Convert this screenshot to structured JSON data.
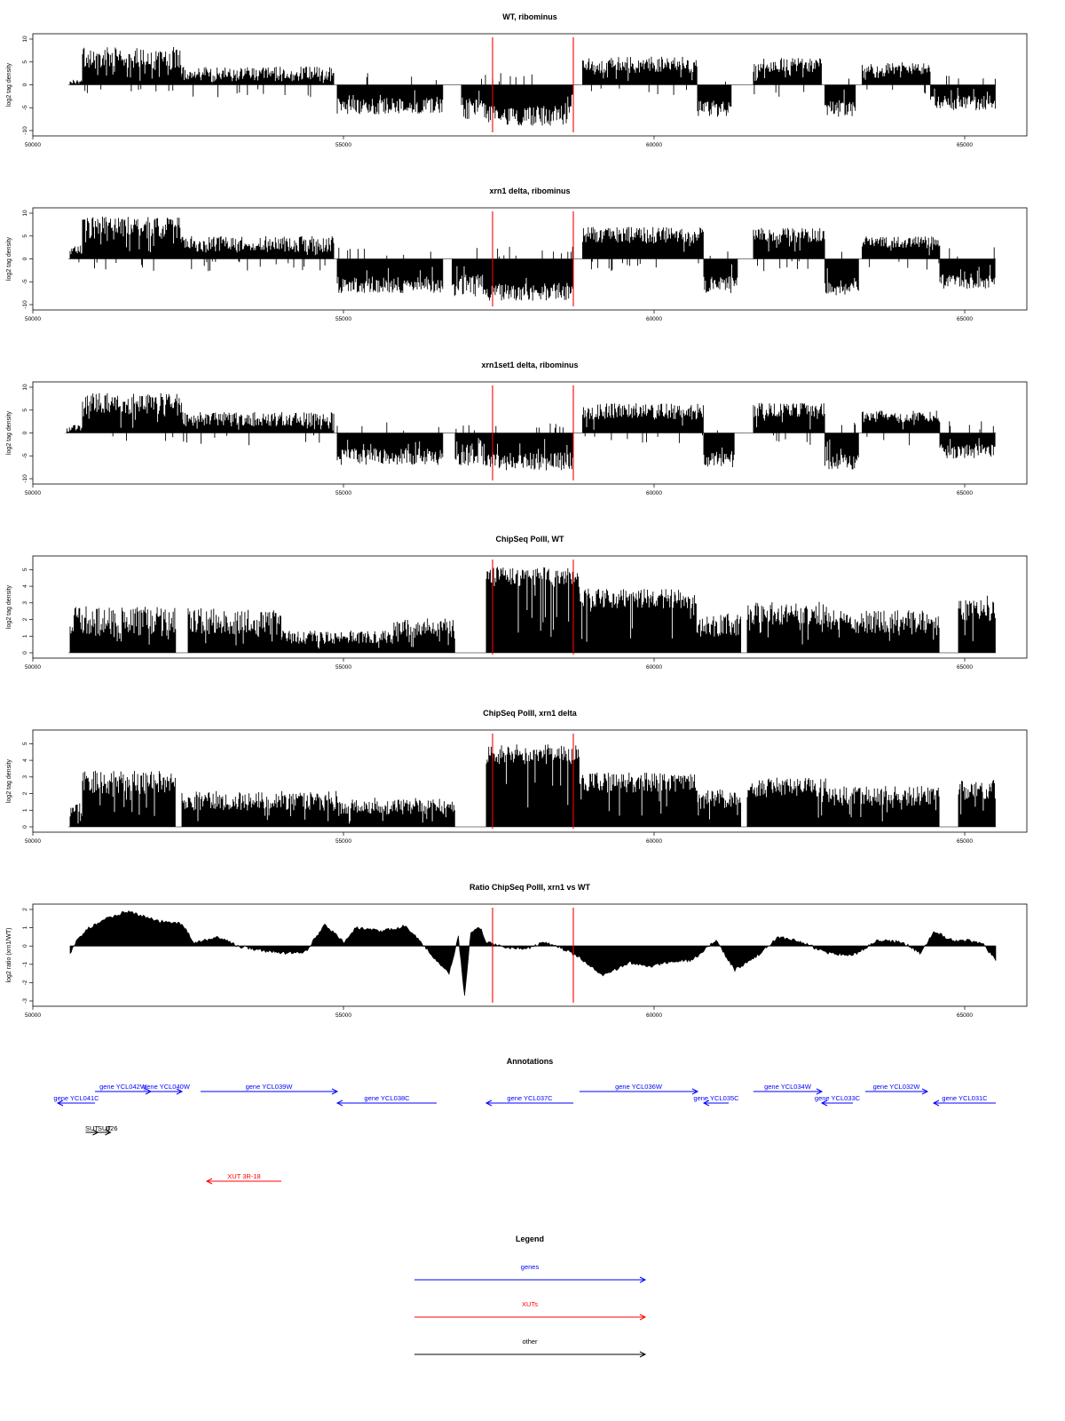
{
  "chart_data": [
    {
      "type": "bar",
      "title": "WT, ribominus",
      "ylabel": "log2 tag density",
      "ylim": [
        -10,
        10
      ],
      "yticks": [
        -10,
        -5,
        0,
        5,
        10
      ],
      "xlim": [
        50000,
        66000
      ],
      "xticks": [
        50000,
        55000,
        60000,
        65000
      ],
      "markers": [
        57400,
        58700
      ],
      "segments": [
        {
          "from": 50600,
          "to": 50800,
          "sign": 1,
          "level": 0.6,
          "jitter": 0.5
        },
        {
          "from": 50800,
          "to": 52400,
          "sign": 1,
          "level": 5.5,
          "jitter": 2.5
        },
        {
          "from": 52400,
          "to": 54850,
          "sign": 1,
          "level": 2.2,
          "jitter": 1.6
        },
        {
          "from": 54900,
          "to": 56600,
          "sign": -1,
          "level": 4.5,
          "jitter": 1.8
        },
        {
          "from": 56900,
          "to": 57300,
          "sign": -1,
          "level": 5,
          "jitter": 2.5
        },
        {
          "from": 57300,
          "to": 58700,
          "sign": -1,
          "level": 6.5,
          "jitter": 2.2
        },
        {
          "from": 58850,
          "to": 60700,
          "sign": 1,
          "level": 4.2,
          "jitter": 1.8
        },
        {
          "from": 60700,
          "to": 61250,
          "sign": -1,
          "level": 5,
          "jitter": 1.8
        },
        {
          "from": 61600,
          "to": 62700,
          "sign": 1,
          "level": 4.2,
          "jitter": 1.6
        },
        {
          "from": 62750,
          "to": 63250,
          "sign": -1,
          "level": 5,
          "jitter": 1.8
        },
        {
          "from": 63350,
          "to": 64450,
          "sign": 1,
          "level": 3.5,
          "jitter": 1.3
        },
        {
          "from": 64450,
          "to": 65500,
          "sign": -1,
          "level": 3.8,
          "jitter": 1.6
        }
      ]
    },
    {
      "type": "bar",
      "title": "xrn1 delta, ribominus",
      "ylabel": "log2 tag density",
      "ylim": [
        -10,
        10
      ],
      "yticks": [
        -10,
        -5,
        0,
        5,
        10
      ],
      "xlim": [
        50000,
        66000
      ],
      "xticks": [
        50000,
        55000,
        60000,
        65000
      ],
      "markers": [
        57400,
        58700
      ],
      "segments": [
        {
          "from": 50600,
          "to": 50800,
          "sign": 1,
          "level": 2,
          "jitter": 1.2
        },
        {
          "from": 50800,
          "to": 52400,
          "sign": 1,
          "level": 6.5,
          "jitter": 2.5
        },
        {
          "from": 52400,
          "to": 54850,
          "sign": 1,
          "level": 3,
          "jitter": 1.8
        },
        {
          "from": 54900,
          "to": 56600,
          "sign": -1,
          "level": 5.5,
          "jitter": 1.8
        },
        {
          "from": 56750,
          "to": 57300,
          "sign": -1,
          "level": 5.5,
          "jitter": 2.5
        },
        {
          "from": 57300,
          "to": 58700,
          "sign": -1,
          "level": 7,
          "jitter": 2
        },
        {
          "from": 58850,
          "to": 60800,
          "sign": 1,
          "level": 5,
          "jitter": 1.8
        },
        {
          "from": 60800,
          "to": 61350,
          "sign": -1,
          "level": 5.5,
          "jitter": 1.8
        },
        {
          "from": 61600,
          "to": 62750,
          "sign": 1,
          "level": 5,
          "jitter": 1.6
        },
        {
          "from": 62750,
          "to": 63300,
          "sign": -1,
          "level": 6,
          "jitter": 1.8
        },
        {
          "from": 63350,
          "to": 64600,
          "sign": 1,
          "level": 3.5,
          "jitter": 1.3
        },
        {
          "from": 64600,
          "to": 65500,
          "sign": -1,
          "level": 4.8,
          "jitter": 1.6
        }
      ]
    },
    {
      "type": "bar",
      "title": "xrn1set1 delta, ribominus",
      "ylabel": "log2 tag density",
      "ylim": [
        -10,
        10
      ],
      "yticks": [
        -10,
        -5,
        0,
        5,
        10
      ],
      "xlim": [
        50000,
        66000
      ],
      "xticks": [
        50000,
        55000,
        60000,
        65000
      ],
      "markers": [
        57400,
        58700
      ],
      "segments": [
        {
          "from": 50550,
          "to": 50800,
          "sign": 1,
          "level": 1,
          "jitter": 0.8
        },
        {
          "from": 50800,
          "to": 52400,
          "sign": 1,
          "level": 6,
          "jitter": 2.5
        },
        {
          "from": 52400,
          "to": 54850,
          "sign": 1,
          "level": 2.8,
          "jitter": 1.6
        },
        {
          "from": 54900,
          "to": 56600,
          "sign": -1,
          "level": 5,
          "jitter": 1.8
        },
        {
          "from": 56800,
          "to": 57300,
          "sign": -1,
          "level": 4.5,
          "jitter": 2.5
        },
        {
          "from": 57300,
          "to": 58700,
          "sign": -1,
          "level": 6,
          "jitter": 2
        },
        {
          "from": 58850,
          "to": 60800,
          "sign": 1,
          "level": 4.5,
          "jitter": 1.8
        },
        {
          "from": 60800,
          "to": 61300,
          "sign": -1,
          "level": 5.5,
          "jitter": 1.8
        },
        {
          "from": 61600,
          "to": 62750,
          "sign": 1,
          "level": 4.8,
          "jitter": 1.6
        },
        {
          "from": 62750,
          "to": 63300,
          "sign": -1,
          "level": 6,
          "jitter": 1.8
        },
        {
          "from": 63350,
          "to": 64600,
          "sign": 1,
          "level": 3.5,
          "jitter": 1.3
        },
        {
          "from": 64600,
          "to": 65500,
          "sign": -1,
          "level": 4,
          "jitter": 1.6
        }
      ]
    },
    {
      "type": "bar",
      "title": "ChipSeq PolII, WT",
      "ylabel": "log2 tag density",
      "ylim": [
        0,
        5.5
      ],
      "yticks": [
        0,
        1,
        2,
        3,
        4,
        5
      ],
      "xlim": [
        50000,
        66000
      ],
      "xticks": [
        50000,
        55000,
        60000,
        65000
      ],
      "markers": [
        57400,
        58700
      ],
      "segments": [
        {
          "from": 50600,
          "to": 52300,
          "sign": 1,
          "level": 1.8,
          "jitter": 0.9
        },
        {
          "from": 52500,
          "to": 54000,
          "sign": 1,
          "level": 1.8,
          "jitter": 0.8
        },
        {
          "from": 54000,
          "to": 55800,
          "sign": 1,
          "level": 0.9,
          "jitter": 0.4
        },
        {
          "from": 55800,
          "to": 56800,
          "sign": 1,
          "level": 1.4,
          "jitter": 0.6
        },
        {
          "from": 57300,
          "to": 58800,
          "sign": 1,
          "level": 4.5,
          "jitter": 0.6
        },
        {
          "from": 58800,
          "to": 60700,
          "sign": 1,
          "level": 3.2,
          "jitter": 0.6
        },
        {
          "from": 60700,
          "to": 61400,
          "sign": 1,
          "level": 1.6,
          "jitter": 0.7
        },
        {
          "from": 61500,
          "to": 62800,
          "sign": 1,
          "level": 2.3,
          "jitter": 0.7
        },
        {
          "from": 62800,
          "to": 64600,
          "sign": 1,
          "level": 1.8,
          "jitter": 0.7
        },
        {
          "from": 64900,
          "to": 65500,
          "sign": 1,
          "level": 2.6,
          "jitter": 0.8
        }
      ]
    },
    {
      "type": "bar",
      "title": "ChipSeq PolII, xrn1 delta",
      "ylabel": "log2 tag density",
      "ylim": [
        0,
        5.5
      ],
      "yticks": [
        0,
        1,
        2,
        3,
        4,
        5
      ],
      "xlim": [
        50000,
        66000
      ],
      "xticks": [
        50000,
        55000,
        60000,
        65000
      ],
      "markers": [
        57400,
        58700
      ],
      "segments": [
        {
          "from": 50600,
          "to": 50800,
          "sign": 1,
          "level": 1,
          "jitter": 0.5
        },
        {
          "from": 50800,
          "to": 52300,
          "sign": 1,
          "level": 2.6,
          "jitter": 0.7
        },
        {
          "from": 52400,
          "to": 54900,
          "sign": 1,
          "level": 1.5,
          "jitter": 0.6
        },
        {
          "from": 54900,
          "to": 56800,
          "sign": 1,
          "level": 1.2,
          "jitter": 0.5
        },
        {
          "from": 57300,
          "to": 58800,
          "sign": 1,
          "level": 4.3,
          "jitter": 0.6
        },
        {
          "from": 58800,
          "to": 60700,
          "sign": 1,
          "level": 2.6,
          "jitter": 0.6
        },
        {
          "from": 60700,
          "to": 61400,
          "sign": 1,
          "level": 1.6,
          "jitter": 0.6
        },
        {
          "from": 61500,
          "to": 62800,
          "sign": 1,
          "level": 2.3,
          "jitter": 0.6
        },
        {
          "from": 62800,
          "to": 64600,
          "sign": 1,
          "level": 1.8,
          "jitter": 0.6
        },
        {
          "from": 64900,
          "to": 65500,
          "sign": 1,
          "level": 2.2,
          "jitter": 0.6
        }
      ]
    },
    {
      "type": "area",
      "title": "Ratio ChipSeq PolII, xrn1 vs WT",
      "ylabel": "log2 ratio (xrn1/WT)",
      "ylim": [
        -3,
        2
      ],
      "yticks": [
        -3,
        -2,
        -1,
        0,
        1,
        2
      ],
      "xlim": [
        50000,
        66000
      ],
      "xticks": [
        50000,
        55000,
        60000,
        65000
      ],
      "markers": [
        57400,
        58700
      ],
      "profile": [
        [
          50600,
          -0.4
        ],
        [
          50700,
          0.3
        ],
        [
          50900,
          1.0
        ],
        [
          51200,
          1.5
        ],
        [
          51500,
          1.9
        ],
        [
          51800,
          1.6
        ],
        [
          52100,
          1.3
        ],
        [
          52400,
          1.2
        ],
        [
          52600,
          0.2
        ],
        [
          53000,
          0.5
        ],
        [
          53300,
          0.0
        ],
        [
          53600,
          -0.2
        ],
        [
          54000,
          -0.4
        ],
        [
          54400,
          -0.3
        ],
        [
          54700,
          1.2
        ],
        [
          55000,
          0.2
        ],
        [
          55200,
          1.0
        ],
        [
          55600,
          0.8
        ],
        [
          56000,
          1.1
        ],
        [
          56200,
          0.4
        ],
        [
          56500,
          -0.8
        ],
        [
          56700,
          -1.5
        ],
        [
          56850,
          0.5
        ],
        [
          56950,
          -2.8
        ],
        [
          57050,
          0.8
        ],
        [
          57200,
          1.0
        ],
        [
          57300,
          0.2
        ],
        [
          57600,
          -0.1
        ],
        [
          58000,
          -0.1
        ],
        [
          58200,
          0.2
        ],
        [
          58500,
          -0.1
        ],
        [
          58800,
          -0.6
        ],
        [
          59000,
          -1.2
        ],
        [
          59200,
          -1.6
        ],
        [
          59600,
          -0.9
        ],
        [
          60000,
          -1.1
        ],
        [
          60300,
          -0.8
        ],
        [
          60600,
          -0.8
        ],
        [
          61000,
          0.3
        ],
        [
          61300,
          -1.3
        ],
        [
          61600,
          -0.7
        ],
        [
          62000,
          0.5
        ],
        [
          62400,
          0.2
        ],
        [
          62800,
          -0.4
        ],
        [
          63200,
          -0.5
        ],
        [
          63600,
          0.3
        ],
        [
          64000,
          0.2
        ],
        [
          64300,
          -0.4
        ],
        [
          64500,
          0.8
        ],
        [
          64800,
          0.3
        ],
        [
          65100,
          0.3
        ],
        [
          65300,
          0.1
        ],
        [
          65500,
          -0.8
        ]
      ]
    }
  ],
  "annotations": {
    "title": "Annotations",
    "xlim": [
      50000,
      66000
    ],
    "genes": [
      {
        "label": "gene YCL042W",
        "from": 51000,
        "to": 51900,
        "dir": "right",
        "row": 0
      },
      {
        "label": "gene YCL040W",
        "from": 51900,
        "to": 52400,
        "dir": "right",
        "row": 0
      },
      {
        "label": "gene YCL041C",
        "from": 50400,
        "to": 51000,
        "dir": "left",
        "row": 1
      },
      {
        "label": "gene YCL039W",
        "from": 52700,
        "to": 54900,
        "dir": "right",
        "row": 0
      },
      {
        "label": "gene YCL038C",
        "from": 54900,
        "to": 56500,
        "dir": "left",
        "row": 1
      },
      {
        "label": "gene YCL037C",
        "from": 57300,
        "to": 58700,
        "dir": "left",
        "row": 1
      },
      {
        "label": "gene YCL036W",
        "from": 58800,
        "to": 60700,
        "dir": "right",
        "row": 0
      },
      {
        "label": "gene YCL035C",
        "from": 60800,
        "to": 61200,
        "dir": "left",
        "row": 1
      },
      {
        "label": "gene YCL034W",
        "from": 61600,
        "to": 62700,
        "dir": "right",
        "row": 0
      },
      {
        "label": "gene YCL033C",
        "from": 62700,
        "to": 63200,
        "dir": "left",
        "row": 1
      },
      {
        "label": "gene YCL032W",
        "from": 63400,
        "to": 64400,
        "dir": "right",
        "row": 0
      },
      {
        "label": "gene YCL031C",
        "from": 64500,
        "to": 65500,
        "dir": "left",
        "row": 1
      }
    ],
    "xuts": [
      {
        "label": "XUT 3R-18",
        "from": 52800,
        "to": 54000,
        "dir": "left"
      }
    ],
    "others": [
      {
        "label": "SUT",
        "from": 50850,
        "to": 51050,
        "dir": "right"
      },
      {
        "label": "SUT",
        "from": 51050,
        "to": 51250,
        "dir": "right"
      },
      {
        "label": "026",
        "from": 51250,
        "to": 51300,
        "dir": "none"
      }
    ]
  },
  "legend": {
    "title": "Legend",
    "items": [
      {
        "label": "genes",
        "color": "#0000ff"
      },
      {
        "label": "XUTs",
        "color": "#ff0000"
      },
      {
        "label": "other",
        "color": "#000000"
      }
    ]
  },
  "colors": {
    "signal": "#000000",
    "marker": "#ff0000",
    "gene": "#0000ff",
    "xut": "#ff0000",
    "other": "#000000"
  }
}
